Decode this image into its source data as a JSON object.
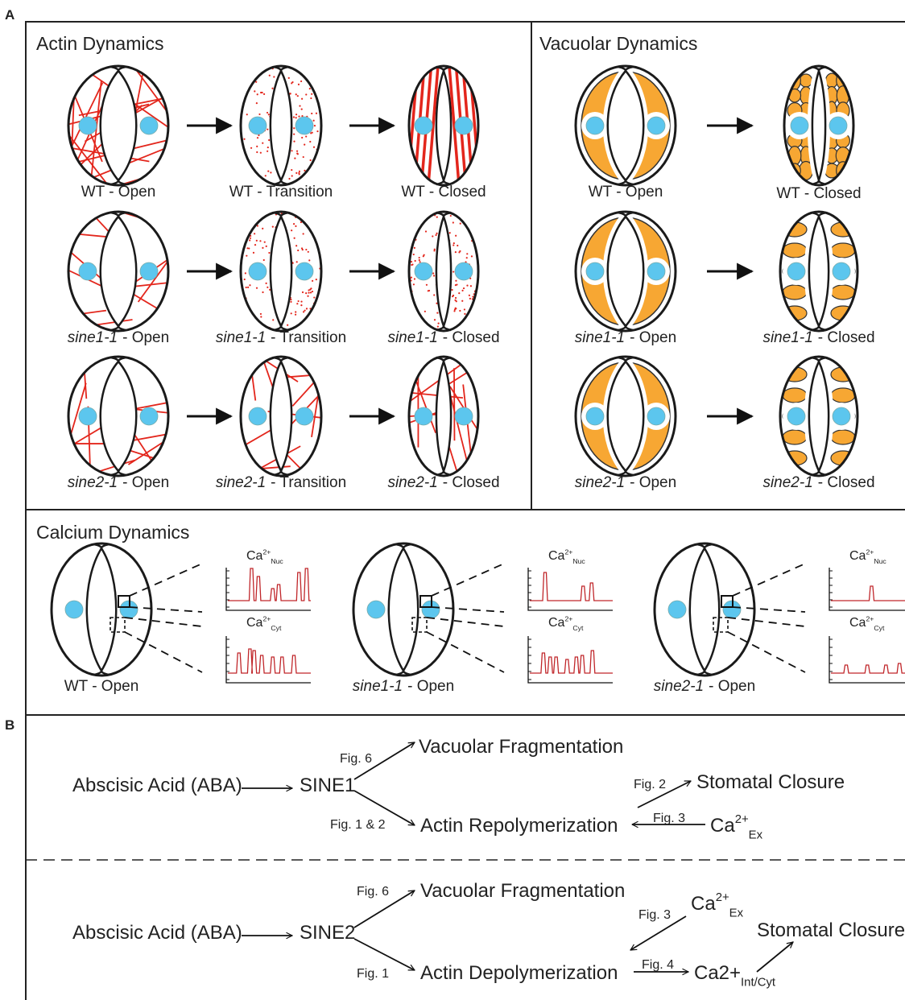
{
  "panel_labels": {
    "a": "A",
    "b": "B"
  },
  "actin_dynamics": {
    "title": "Actin Dynamics",
    "rows": [
      {
        "genotype": "WT",
        "states": [
          "- Open",
          "- Transition",
          "- Closed"
        ]
      },
      {
        "genotype": "sine1-1",
        "states": [
          "- Open",
          "- Transition",
          "- Closed"
        ]
      },
      {
        "genotype": "sine2-1",
        "states": [
          "- Open",
          "- Transition",
          "- Closed"
        ]
      }
    ]
  },
  "vacuolar_dynamics": {
    "title": "Vacuolar Dynamics",
    "rows": [
      {
        "genotype": "WT",
        "states": [
          "- Open",
          "- Closed"
        ]
      },
      {
        "genotype": "sine1-1",
        "states": [
          "- Open",
          "- Closed"
        ]
      },
      {
        "genotype": "sine2-1",
        "states": [
          "- Open",
          "- Closed"
        ]
      }
    ]
  },
  "calcium_dynamics": {
    "title": "Calcium Dynamics",
    "cells": [
      {
        "genotype": "WT",
        "state": "- Open"
      },
      {
        "genotype": "sine1-1",
        "state": "- Open"
      },
      {
        "genotype": "sine2-1",
        "state": "- Open"
      }
    ],
    "nuclear_label": {
      "base": "Ca",
      "sup": "2+",
      "sub": "Nuc"
    },
    "cytosolic_label": {
      "base": "Ca",
      "sup": "2+",
      "sub": "Cyt"
    }
  },
  "pathways": [
    {
      "nodes": [
        {
          "base": "Abscisic Acid (ABA)"
        },
        {
          "base": "SINE1"
        },
        {
          "base": "Vacuolar Fragmentation"
        },
        {
          "base": "Actin Repolymerization"
        },
        {
          "base": "Stomatal Closure"
        },
        {
          "base": "Ca",
          "sup": "2+",
          "sub": "Ex"
        }
      ],
      "edges": [
        {
          "label": "Fig. 6"
        },
        {
          "label": "Fig. 1 & 2"
        },
        {
          "label": "Fig. 2"
        },
        {
          "label": "Fig. 3"
        }
      ]
    },
    {
      "nodes": [
        {
          "base": "Abscisic Acid (ABA)"
        },
        {
          "base": "SINE2"
        },
        {
          "base": "Vacuolar Fragmentation"
        },
        {
          "base": "Actin Depolymerization"
        },
        {
          "base": "Ca",
          "sup": "2+",
          "sub": "Ex"
        },
        {
          "base": "Stomatal Closure"
        },
        {
          "base": "Ca2+",
          "sub": "Int/Cyt"
        }
      ],
      "edges": [
        {
          "label": "Fig. 6"
        },
        {
          "label": "Fig. 1"
        },
        {
          "label": "Fig. 3"
        },
        {
          "label": "Fig. 4"
        }
      ]
    }
  ]
}
